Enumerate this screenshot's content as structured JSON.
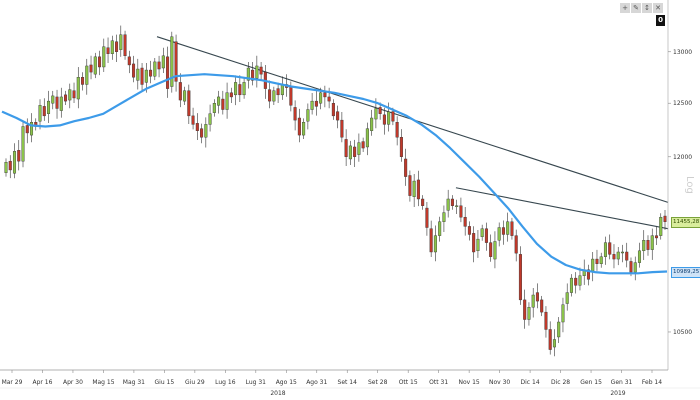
{
  "toolbar": {
    "buttons": [
      {
        "name": "plus-icon",
        "glyph": "+"
      },
      {
        "name": "edit-icon",
        "glyph": "✎"
      },
      {
        "name": "resize-icon",
        "glyph": "↕"
      },
      {
        "name": "close-icon",
        "glyph": "✕"
      }
    ],
    "zero_label": "0",
    "log_label": "Log"
  },
  "chart_data": {
    "type": "candlestick",
    "y_scale": "log",
    "ylim": [
      10200,
      13400
    ],
    "y_ticks": [
      "13000",
      "12500",
      "12000",
      "10500"
    ],
    "x_tick_labels": [
      "Mar 29",
      "Apr 16",
      "Apr 30",
      "Mag 15",
      "Mag 31",
      "Giu 15",
      "Giu 29",
      "Lug 16",
      "Lug 31",
      "Ago 15",
      "Ago 31",
      "Set 14",
      "Set 28",
      "Ott 15",
      "Ott 31",
      "Nov 15",
      "Nov 30",
      "Dic 14",
      "Dic 28",
      "Gen 15",
      "Gen 31",
      "Feb 14"
    ],
    "year_labels": [
      "2018",
      "2019"
    ],
    "price_label": "11455,2813",
    "ma_label": "10989,2574",
    "colors": {
      "up": "#8bc34a",
      "down": "#c0392b",
      "ma": "#3d9be9",
      "trend": "#37474f",
      "price_tag_bg": "#d9ed9c",
      "ma_tag_bg": "#cfe3f7"
    },
    "candles": [
      [
        11855,
        11950
      ],
      [
        11960,
        11880
      ],
      [
        11850,
        12050
      ],
      [
        12060,
        11960
      ],
      [
        11960,
        12280
      ],
      [
        12290,
        12220
      ],
      [
        12200,
        12320
      ],
      [
        12320,
        12280
      ],
      [
        12330,
        12480
      ],
      [
        12470,
        12380
      ],
      [
        12400,
        12520
      ],
      [
        12500,
        12570
      ],
      [
        12560,
        12450
      ],
      [
        12430,
        12560
      ],
      [
        12580,
        12520
      ],
      [
        12530,
        12630
      ],
      [
        12620,
        12550
      ],
      [
        12540,
        12750
      ],
      [
        12750,
        12680
      ],
      [
        12680,
        12860
      ],
      [
        12870,
        12800
      ],
      [
        12780,
        12950
      ],
      [
        12950,
        12850
      ],
      [
        12850,
        13050
      ],
      [
        13040,
        12980
      ],
      [
        12980,
        13110
      ],
      [
        13100,
        13000
      ],
      [
        13020,
        13170
      ],
      [
        13170,
        12960
      ],
      [
        12950,
        12870
      ],
      [
        12880,
        12750
      ],
      [
        12720,
        12830
      ],
      [
        12840,
        12680
      ],
      [
        12700,
        12820
      ],
      [
        12820,
        12760
      ],
      [
        12760,
        12900
      ],
      [
        12900,
        12830
      ],
      [
        12840,
        12960
      ],
      [
        12950,
        12640
      ],
      [
        12660,
        13150
      ],
      [
        13100,
        12710
      ],
      [
        12700,
        12530
      ],
      [
        12520,
        12620
      ],
      [
        12620,
        12380
      ],
      [
        12380,
        12300
      ],
      [
        12310,
        12240
      ],
      [
        12260,
        12180
      ],
      [
        12180,
        12300
      ],
      [
        12300,
        12400
      ],
      [
        12410,
        12500
      ],
      [
        12480,
        12560
      ],
      [
        12540,
        12440
      ],
      [
        12440,
        12600
      ],
      [
        12600,
        12560
      ],
      [
        12580,
        12700
      ],
      [
        12680,
        12580
      ],
      [
        12580,
        12700
      ],
      [
        12720,
        12840
      ],
      [
        12820,
        12720
      ],
      [
        12740,
        12860
      ],
      [
        12850,
        12780
      ],
      [
        12800,
        12640
      ],
      [
        12630,
        12520
      ],
      [
        12520,
        12620
      ],
      [
        12640,
        12580
      ],
      [
        12580,
        12680
      ],
      [
        12680,
        12650
      ],
      [
        12660,
        12480
      ],
      [
        12460,
        12340
      ],
      [
        12360,
        12200
      ],
      [
        12200,
        12320
      ],
      [
        12330,
        12440
      ],
      [
        12440,
        12520
      ],
      [
        12520,
        12470
      ],
      [
        12500,
        12600
      ],
      [
        12600,
        12560
      ],
      [
        12560,
        12520
      ],
      [
        12500,
        12380
      ],
      [
        12420,
        12340
      ],
      [
        12340,
        12180
      ],
      [
        12160,
        12000
      ],
      [
        11980,
        12100
      ],
      [
        12090,
        12000
      ],
      [
        12020,
        12130
      ],
      [
        12140,
        12080
      ],
      [
        12090,
        12260
      ],
      [
        12240,
        12360
      ],
      [
        12350,
        12450
      ],
      [
        12460,
        12400
      ],
      [
        12390,
        12300
      ],
      [
        12300,
        12420
      ],
      [
        12420,
        12330
      ],
      [
        12320,
        12180
      ],
      [
        12180,
        12000
      ],
      [
        11980,
        11820
      ],
      [
        11830,
        11650
      ],
      [
        11640,
        11780
      ],
      [
        11790,
        11620
      ],
      [
        11620,
        11560
      ],
      [
        11540,
        11370
      ],
      [
        11360,
        11160
      ],
      [
        11160,
        11300
      ],
      [
        11300,
        11420
      ],
      [
        11420,
        11500
      ],
      [
        11520,
        11620
      ],
      [
        11620,
        11560
      ],
      [
        11560,
        11560
      ],
      [
        11560,
        11460
      ],
      [
        11460,
        11380
      ],
      [
        11380,
        11310
      ],
      [
        11320,
        11160
      ],
      [
        11170,
        11270
      ],
      [
        11290,
        11360
      ],
      [
        11360,
        11240
      ],
      [
        11240,
        11120
      ],
      [
        11100,
        11250
      ],
      [
        11260,
        11370
      ],
      [
        11370,
        11310
      ],
      [
        11310,
        11420
      ],
      [
        11420,
        11300
      ],
      [
        11300,
        11150
      ],
      [
        11140,
        10760
      ],
      [
        10760,
        10600
      ],
      [
        10600,
        10700
      ],
      [
        10700,
        10800
      ],
      [
        10820,
        10750
      ],
      [
        10760,
        10660
      ],
      [
        10660,
        10520
      ],
      [
        10520,
        10360
      ],
      [
        10380,
        10440
      ],
      [
        10460,
        10580
      ],
      [
        10580,
        10720
      ],
      [
        10730,
        10820
      ],
      [
        10820,
        10940
      ],
      [
        10940,
        10880
      ],
      [
        10880,
        10960
      ],
      [
        10960,
        11010
      ],
      [
        11010,
        10930
      ],
      [
        11000,
        11100
      ],
      [
        11100,
        11060
      ],
      [
        11060,
        11120
      ],
      [
        11120,
        11240
      ],
      [
        11240,
        11140
      ],
      [
        11140,
        11100
      ],
      [
        11100,
        11160
      ],
      [
        11160,
        11160
      ],
      [
        11160,
        11090
      ],
      [
        11080,
        10990
      ],
      [
        10990,
        11070
      ],
      [
        11070,
        11170
      ],
      [
        11170,
        11260
      ],
      [
        11260,
        11180
      ],
      [
        11180,
        11300
      ],
      [
        11300,
        11280
      ],
      [
        11300,
        11460
      ],
      [
        11470,
        11420
      ]
    ],
    "moving_average": [
      12420,
      12360,
      12290,
      12280,
      12290,
      12330,
      12360,
      12400,
      12480,
      12560,
      12640,
      12700,
      12760,
      12770,
      12780,
      12770,
      12760,
      12740,
      12720,
      12690,
      12660,
      12640,
      12620,
      12600,
      12570,
      12540,
      12500,
      12440,
      12380,
      12300,
      12200,
      12080,
      11950,
      11820,
      11680,
      11540,
      11380,
      11230,
      11120,
      11050,
      11010,
      10990,
      10980,
      10980,
      10980,
      10990,
      10995
    ],
    "trend_lines": [
      {
        "from": [
          0,
          13150
        ],
        "to": [
          1,
          11590
        ]
      },
      {
        "from": [
          0.585,
          11720
        ],
        "to": [
          1,
          11360
        ]
      }
    ]
  }
}
